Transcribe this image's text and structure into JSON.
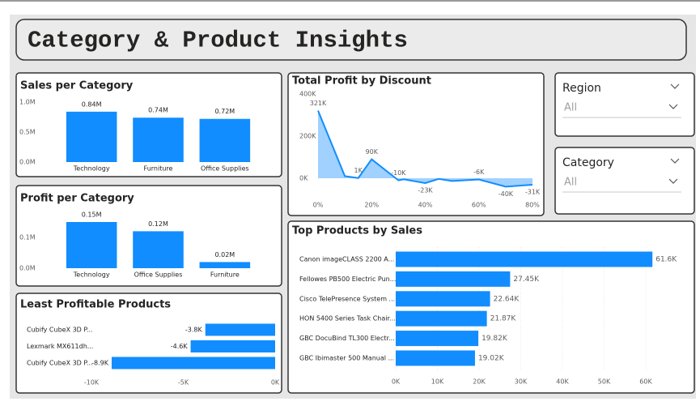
{
  "title": "Category & Product Insights",
  "slicers": [
    {
      "label": "Region",
      "value": "All"
    },
    {
      "label": "Category",
      "value": "All"
    }
  ],
  "chart_data": [
    {
      "type": "bar",
      "title": "Sales per Category",
      "categories": [
        "Technology",
        "Furniture",
        "Office Supplies"
      ],
      "values": [
        840000,
        740000,
        720000
      ],
      "value_labels": [
        "0.84M",
        "0.74M",
        "0.72M"
      ],
      "color": "#118dff",
      "ylim": [
        0,
        1000000
      ],
      "yticks": [
        {
          "value": 0,
          "label": "0.0M"
        },
        {
          "value": 500000,
          "label": "0.5M"
        },
        {
          "value": 1000000,
          "label": "1.0M"
        }
      ]
    },
    {
      "type": "bar",
      "title": "Profit per Category",
      "categories": [
        "Technology",
        "Office Supplies",
        "Furniture"
      ],
      "values": [
        150000,
        120000,
        20000
      ],
      "value_labels": [
        "0.15M",
        "0.12M",
        "0.02M"
      ],
      "color": "#118dff",
      "ylim": [
        0,
        180000
      ],
      "yticks": [
        {
          "value": 0,
          "label": "0.0M"
        },
        {
          "value": 100000,
          "label": "0.1M"
        }
      ]
    },
    {
      "type": "hbar",
      "title": "Least Profitable Products",
      "categories": [
        "Cubify CubeX 3D P...",
        "Lexmark MX611dh...",
        "Cubify CubeX 3D P..."
      ],
      "values": [
        -3800,
        -4600,
        -8900
      ],
      "value_labels": [
        "-3.8K",
        "-4.6K",
        "-8.9K"
      ],
      "color": "#118dff",
      "xlim": [
        -10000,
        0
      ],
      "xticks": [
        {
          "value": -10000,
          "label": "-10K"
        },
        {
          "value": -5000,
          "label": "-5K"
        },
        {
          "value": 0,
          "label": "0K"
        }
      ]
    },
    {
      "type": "area",
      "title": "Total Profit by Discount",
      "x": [
        0,
        10,
        15,
        20,
        30,
        32,
        40,
        45,
        50,
        60,
        70,
        80
      ],
      "values": [
        321000,
        10000,
        1000,
        90000,
        -10000,
        -5000,
        -23000,
        -3000,
        -13000,
        -6000,
        -40000,
        -31000
      ],
      "value_labels": [
        "321K",
        null,
        "1K",
        "90K",
        "-10K",
        null,
        "-23K",
        null,
        null,
        "-6K",
        "-40K",
        "-31K"
      ],
      "color": "#118dff",
      "xlim": [
        0,
        80
      ],
      "ylim": [
        -60000,
        420000
      ],
      "xticks": [
        {
          "value": 0,
          "label": "0%"
        },
        {
          "value": 20,
          "label": "20%"
        },
        {
          "value": 40,
          "label": "40%"
        },
        {
          "value": 60,
          "label": "60%"
        },
        {
          "value": 80,
          "label": "80%"
        }
      ],
      "yticks": [
        {
          "value": 0,
          "label": "0K"
        },
        {
          "value": 200000,
          "label": "200K"
        },
        {
          "value": 400000,
          "label": "400K"
        }
      ]
    },
    {
      "type": "hbar",
      "title": "Top Products by Sales",
      "categories": [
        "Canon imageCLASS 2200 A...",
        "Fellowes PB500 Electric Pun...",
        "Cisco TelePresence System ...",
        "HON 5400 Series Task Chair...",
        "GBC DocuBind TL300 Electr...",
        "GBC Ibimaster 500 Manual ..."
      ],
      "values": [
        61600,
        27450,
        22640,
        21870,
        19820,
        19020
      ],
      "value_labels": [
        "61.6K",
        "27.45K",
        "22.64K",
        "21.87K",
        "19.82K",
        "19.02K"
      ],
      "color": "#118dff",
      "grid": true,
      "xlim": [
        0,
        60000
      ],
      "xticks": [
        {
          "value": 0,
          "label": "0K"
        },
        {
          "value": 10000,
          "label": "10K"
        },
        {
          "value": 20000,
          "label": "20K"
        },
        {
          "value": 30000,
          "label": "30K"
        },
        {
          "value": 40000,
          "label": "40K"
        },
        {
          "value": 50000,
          "label": "50K"
        },
        {
          "value": 60000,
          "label": "60K"
        }
      ]
    }
  ]
}
